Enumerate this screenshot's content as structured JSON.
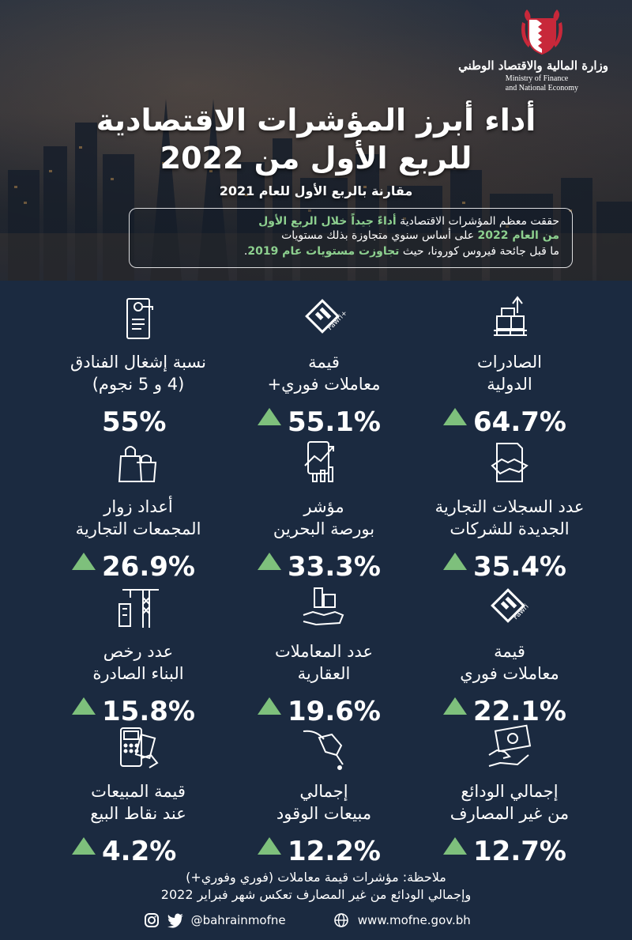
{
  "header": {
    "logo_ar": "وزارة المالية والاقتصاد الوطني",
    "logo_en_line1": "Ministry of Finance",
    "logo_en_line2": "and National Economy",
    "title_line1": "أداء أبرز المؤشرات الاقتصادية",
    "title_line2": "للربع الأول من 2022",
    "subtitle": "مقارنة بالربع الأول للعام 2021"
  },
  "summary": {
    "line1_a": "حققت معظم المؤشرات الاقتصادية ",
    "line1_b": "أداءً جيداً خلال الربع الأول",
    "line2_a": "من العام 2022",
    "line2_b": " على أساس سنوي متجاوزة بذلك مستويات",
    "line3_a": "ما قبل جائحة فيروس كورونا، حيث ",
    "line3_b": "تجاوزت مستويات عام 2019",
    "line3_c": "."
  },
  "indicators": [
    {
      "label1": "الصادرات",
      "label2": "الدولية",
      "value": "64.7%",
      "up": true,
      "icon": "exports-pallet-icon"
    },
    {
      "label1": "قيمة",
      "label2": "معاملات فوري+",
      "value": "55.1%",
      "up": true,
      "icon": "fawri-plus-icon",
      "icon_text": "Fawri+"
    },
    {
      "label1": "نسبة إشغال الفنادق",
      "label2": "(4 و 5 نجوم)",
      "value": "55%",
      "up": false,
      "icon": "hotel-door-hanger-icon"
    },
    {
      "label1": "عدد السجلات التجارية",
      "label2": "الجديدة للشركات",
      "value": "35.4%",
      "up": true,
      "icon": "handshake-document-icon"
    },
    {
      "label1": "مؤشر",
      "label2": "بورصة البحرين",
      "value": "33.3%",
      "up": true,
      "icon": "stock-exchange-icon"
    },
    {
      "label1": "أعداد زوار",
      "label2": "المجمعات التجارية",
      "value": "26.9%",
      "up": true,
      "icon": "shopping-bags-icon"
    },
    {
      "label1": "قيمة",
      "label2": "معاملات فوري",
      "value": "22.1%",
      "up": true,
      "icon": "fawri-icon",
      "icon_text": "Fawri"
    },
    {
      "label1": "عدد المعاملات",
      "label2": "العقارية",
      "value": "19.6%",
      "up": true,
      "icon": "real-estate-hand-icon"
    },
    {
      "label1": "عدد رخص",
      "label2": "البناء الصادرة",
      "value": "15.8%",
      "up": true,
      "icon": "construction-crane-icon"
    },
    {
      "label1": "إجمالي الودائع",
      "label2": "من غير المصارف",
      "value": "12.7%",
      "up": true,
      "icon": "money-deposit-icon"
    },
    {
      "label1": "إجمالي",
      "label2": "مبيعات الوقود",
      "value": "12.2%",
      "up": true,
      "icon": "fuel-nozzle-icon"
    },
    {
      "label1": "قيمة المبيعات",
      "label2": "عند نقاط البيع",
      "value": "4.2%",
      "up": true,
      "icon": "pos-card-icon"
    }
  ],
  "footer": {
    "note1": "ملاحظة: مؤشرات قيمة معاملات (فوري وفوري+)",
    "note2": "وإجمالي الودائع من غير المصارف تعكس شهر فبراير 2022",
    "handle": "@bahrainmofne",
    "website": "www.mofne.gov.bh"
  },
  "colors": {
    "background": "#1b2a40",
    "accent_green": "#7ec07c",
    "highlight_text": "#8dd08f"
  }
}
